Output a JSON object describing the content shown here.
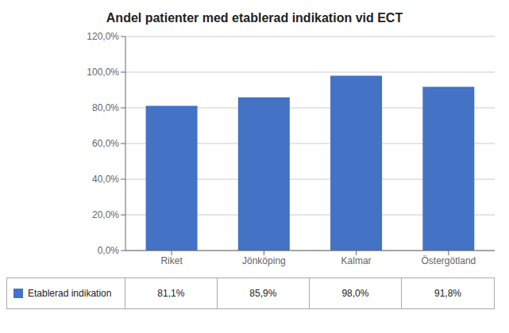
{
  "chart_data": {
    "type": "bar",
    "title": "Andel patienter med etablerad indikation vid ECT",
    "categories": [
      "Riket",
      "Jönköping",
      "Kalmar",
      "Östergötland"
    ],
    "series": [
      {
        "name": "Etablerad indikation",
        "color": "#4472C4",
        "values": [
          81.1,
          85.9,
          98.0,
          91.8
        ],
        "value_labels": [
          "81,1%",
          "85,9%",
          "98,0%",
          "91,8%"
        ]
      }
    ],
    "ylim": [
      0,
      120
    ],
    "yticks": [
      {
        "value": 0,
        "label": "0,0%"
      },
      {
        "value": 20,
        "label": "20,0%"
      },
      {
        "value": 40,
        "label": "40,0%"
      },
      {
        "value": 60,
        "label": "60,0%"
      },
      {
        "value": 80,
        "label": "80,0%"
      },
      {
        "value": 100,
        "label": "100,0%"
      },
      {
        "value": 120,
        "label": "120,0%"
      }
    ],
    "grid": true,
    "legend": "bottom"
  }
}
